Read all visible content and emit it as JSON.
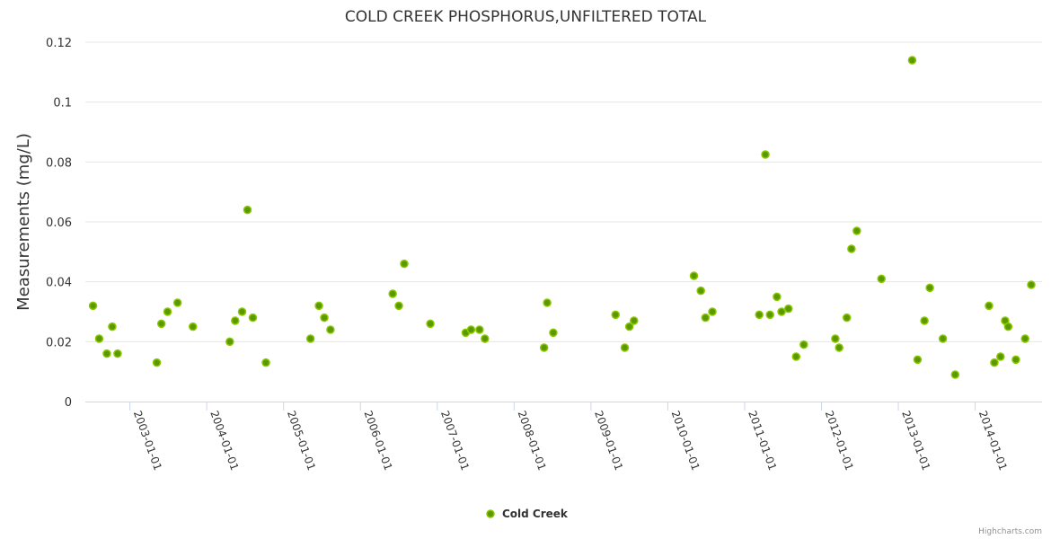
{
  "chart_data": {
    "type": "scatter",
    "title": "COLD CREEK PHOSPHORUS,UNFILTERED TOTAL",
    "xlabel": "",
    "ylabel": "Measurements (mg/L)",
    "ylim": [
      0,
      0.12
    ],
    "xlim": [
      2002.42,
      2014.87
    ],
    "yticks": [
      "0",
      "0.02",
      "0.04",
      "0.06",
      "0.08",
      "0.1",
      "0.12"
    ],
    "ytick_values": [
      0,
      0.02,
      0.04,
      0.06,
      0.08,
      0.1,
      0.12
    ],
    "xticks": [
      "2003-01-01",
      "2004-01-01",
      "2005-01-01",
      "2006-01-01",
      "2007-01-01",
      "2008-01-01",
      "2009-01-01",
      "2010-01-01",
      "2011-01-01",
      "2012-01-01",
      "2013-01-01",
      "2014-01-01"
    ],
    "xtick_values": [
      2003,
      2004,
      2005,
      2006,
      2007,
      2008,
      2009,
      2010,
      2011,
      2012,
      2013,
      2014
    ],
    "grid": true,
    "legend_position": "bottom-center",
    "series": [
      {
        "name": "Cold Creek",
        "color": "#6aa500",
        "points": [
          [
            2002.52,
            0.032
          ],
          [
            2002.6,
            0.021
          ],
          [
            2002.7,
            0.016
          ],
          [
            2002.77,
            0.025
          ],
          [
            2002.84,
            0.016
          ],
          [
            2003.35,
            0.013
          ],
          [
            2003.41,
            0.026
          ],
          [
            2003.49,
            0.03
          ],
          [
            2003.62,
            0.033
          ],
          [
            2003.82,
            0.025
          ],
          [
            2004.3,
            0.02
          ],
          [
            2004.37,
            0.027
          ],
          [
            2004.46,
            0.03
          ],
          [
            2004.53,
            0.064
          ],
          [
            2004.6,
            0.028
          ],
          [
            2004.77,
            0.013
          ],
          [
            2005.35,
            0.021
          ],
          [
            2005.46,
            0.032
          ],
          [
            2005.53,
            0.028
          ],
          [
            2005.61,
            0.024
          ],
          [
            2006.42,
            0.036
          ],
          [
            2006.5,
            0.032
          ],
          [
            2006.57,
            0.046
          ],
          [
            2006.91,
            0.026
          ],
          [
            2007.37,
            0.023
          ],
          [
            2007.44,
            0.024
          ],
          [
            2007.55,
            0.024
          ],
          [
            2007.62,
            0.021
          ],
          [
            2008.39,
            0.018
          ],
          [
            2008.43,
            0.033
          ],
          [
            2008.51,
            0.023
          ],
          [
            2009.32,
            0.029
          ],
          [
            2009.44,
            0.018
          ],
          [
            2009.5,
            0.025
          ],
          [
            2009.56,
            0.027
          ],
          [
            2010.34,
            0.042
          ],
          [
            2010.43,
            0.037
          ],
          [
            2010.49,
            0.028
          ],
          [
            2010.58,
            0.03
          ],
          [
            2011.19,
            0.029
          ],
          [
            2011.27,
            0.0825
          ],
          [
            2011.33,
            0.029
          ],
          [
            2011.42,
            0.035
          ],
          [
            2011.48,
            0.03
          ],
          [
            2011.57,
            0.031
          ],
          [
            2011.67,
            0.015
          ],
          [
            2011.77,
            0.019
          ],
          [
            2012.18,
            0.021
          ],
          [
            2012.23,
            0.018
          ],
          [
            2012.33,
            0.028
          ],
          [
            2012.39,
            0.051
          ],
          [
            2012.46,
            0.057
          ],
          [
            2012.78,
            0.041
          ],
          [
            2013.18,
            0.114
          ],
          [
            2013.25,
            0.014
          ],
          [
            2013.34,
            0.027
          ],
          [
            2013.41,
            0.038
          ],
          [
            2013.58,
            0.021
          ],
          [
            2013.74,
            0.009
          ],
          [
            2014.18,
            0.032
          ],
          [
            2014.25,
            0.013
          ],
          [
            2014.33,
            0.015
          ],
          [
            2014.39,
            0.027
          ],
          [
            2014.43,
            0.025
          ],
          [
            2014.53,
            0.014
          ],
          [
            2014.65,
            0.021
          ],
          [
            2014.73,
            0.039
          ]
        ]
      }
    ],
    "credit": "Highcharts.com"
  }
}
